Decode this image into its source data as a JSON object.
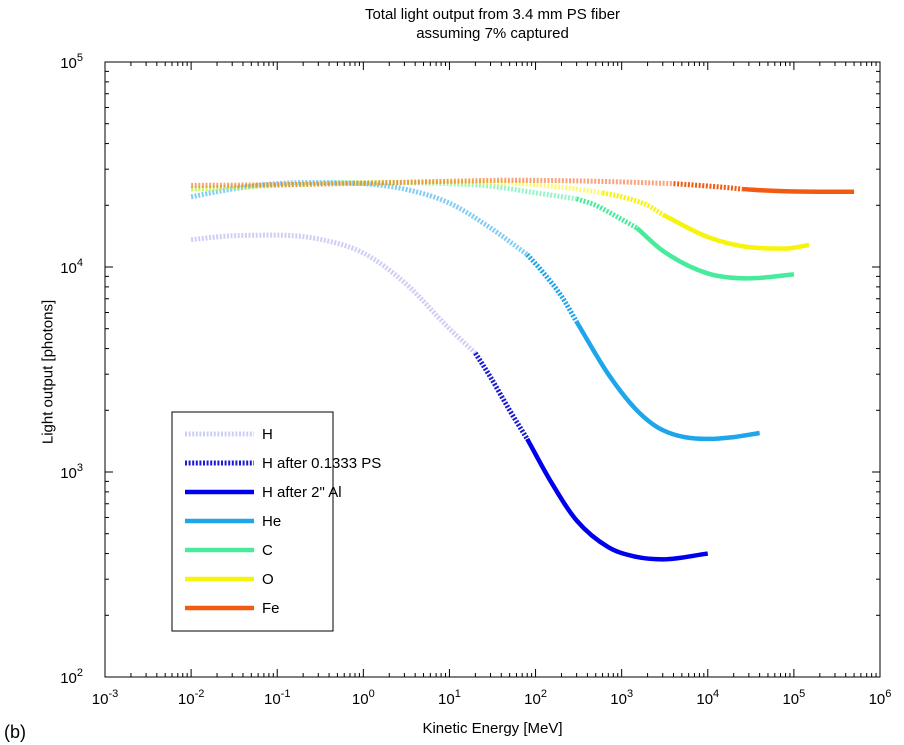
{
  "panel_label": "(b)",
  "colors": {
    "H": "#a8a8ee",
    "H_after_PS": "#1b1bd6",
    "H_after_Al": "#0000ee",
    "He": "#1ea6ea",
    "C": "#46ec9c",
    "O": "#f6f40a",
    "Fe": "#f25a12"
  },
  "chart_data": {
    "type": "line",
    "title": "Total light output from 3.4 mm PS fiber",
    "subtitle": "assuming 7% captured",
    "xlabel": "Kinetic Energy [MeV]",
    "ylabel": "Light output [photons]",
    "x_scale": "log",
    "y_scale": "log",
    "xlim": [
      0.001,
      1000000
    ],
    "ylim": [
      100,
      100000
    ],
    "x_ticks": [
      {
        "base": "10",
        "exp": "-3"
      },
      {
        "base": "10",
        "exp": "-2"
      },
      {
        "base": "10",
        "exp": "-1"
      },
      {
        "base": "10",
        "exp": "0"
      },
      {
        "base": "10",
        "exp": "1"
      },
      {
        "base": "10",
        "exp": "2"
      },
      {
        "base": "10",
        "exp": "3"
      },
      {
        "base": "10",
        "exp": "4"
      },
      {
        "base": "10",
        "exp": "5"
      },
      {
        "base": "10",
        "exp": "6"
      }
    ],
    "y_ticks": [
      {
        "base": "10",
        "exp": "2"
      },
      {
        "base": "10",
        "exp": "3"
      },
      {
        "base": "10",
        "exp": "4"
      },
      {
        "base": "10",
        "exp": "5"
      }
    ],
    "grid": false,
    "legend_position": "bottom-left",
    "legend": [
      {
        "label": "H",
        "style": "dotted-light"
      },
      {
        "label": "H after 0.1333 PS",
        "style": "dotted-dark"
      },
      {
        "label": "H after 2\" Al",
        "style": "solid"
      },
      {
        "label": "He",
        "style": "solid"
      },
      {
        "label": "C",
        "style": "solid"
      },
      {
        "label": "O",
        "style": "solid"
      },
      {
        "label": "Fe",
        "style": "solid"
      }
    ],
    "series": [
      {
        "key": "H",
        "segments": [
          {
            "style": "dotted-light",
            "x": [
              0.01,
              0.03,
              0.1,
              0.3,
              1,
              3,
              10,
              20
            ],
            "y": [
              13600,
              14200,
              14300,
              13700,
              11700,
              8400,
              5000,
              3800
            ]
          },
          {
            "style": "dotted-dark",
            "x": [
              20,
              30,
              50,
              80
            ],
            "y": [
              3800,
              2900,
              2000,
              1450
            ]
          },
          {
            "style": "solid",
            "x": [
              80,
              150,
              300,
              700,
              1500,
              3000,
              10000
            ],
            "y": [
              1450,
              900,
              580,
              430,
              385,
              375,
              400
            ]
          }
        ]
      },
      {
        "key": "He",
        "segments": [
          {
            "style": "dotted-light",
            "x": [
              0.01,
              0.03,
              0.1,
              0.3,
              1,
              3,
              10,
              30,
              80
            ],
            "y": [
              22000,
              24000,
              25500,
              25800,
              25500,
              24000,
              20500,
              15500,
              11500
            ]
          },
          {
            "style": "dotted-dark",
            "x": [
              80,
              120,
              200,
              300
            ],
            "y": [
              11500,
              9500,
              7200,
              5400
            ]
          },
          {
            "style": "solid",
            "x": [
              300,
              700,
              1500,
              3000,
              10000,
              20000,
              40000
            ],
            "y": [
              5400,
              3000,
              2000,
              1600,
              1450,
              1480,
              1550
            ]
          }
        ]
      },
      {
        "key": "C",
        "segments": [
          {
            "style": "dotted-light",
            "x": [
              0.01,
              0.1,
              1,
              10,
              30,
              100,
              300
            ],
            "y": [
              24000,
              25000,
              25800,
              25500,
              24800,
              23000,
              21500
            ]
          },
          {
            "style": "dotted-dark",
            "x": [
              300,
              500,
              800,
              1500
            ],
            "y": [
              21500,
              20000,
              18000,
              15500
            ]
          },
          {
            "style": "solid",
            "x": [
              1500,
              3000,
              10000,
              30000,
              100000
            ],
            "y": [
              15500,
              12000,
              9300,
              8800,
              9200
            ]
          }
        ]
      },
      {
        "key": "O",
        "segments": [
          {
            "style": "dotted-light",
            "x": [
              0.01,
              0.1,
              1,
              10,
              50,
              200,
              600
            ],
            "y": [
              24000,
              25000,
              25800,
              26000,
              25700,
              24500,
              23000
            ]
          },
          {
            "style": "dotted-dark",
            "x": [
              600,
              1000,
              2000,
              3000
            ],
            "y": [
              23000,
              22000,
              20000,
              18000
            ]
          },
          {
            "style": "solid",
            "x": [
              3000,
              10000,
              30000,
              80000,
              150000
            ],
            "y": [
              18000,
              14000,
              12500,
              12300,
              12800
            ]
          }
        ]
      },
      {
        "key": "Fe",
        "segments": [
          {
            "style": "dotted-light",
            "x": [
              0.01,
              0.1,
              1,
              10,
              50,
              300,
              1000,
              4000
            ],
            "y": [
              25000,
              25200,
              25600,
              26200,
              26500,
              26300,
              26000,
              25500
            ]
          },
          {
            "style": "dotted-dark",
            "x": [
              4000,
              8000,
              15000,
              25000
            ],
            "y": [
              25500,
              25000,
              24500,
              24000
            ]
          },
          {
            "style": "solid",
            "x": [
              25000,
              60000,
              200000,
              500000
            ],
            "y": [
              24000,
              23500,
              23300,
              23300
            ]
          }
        ]
      }
    ]
  }
}
